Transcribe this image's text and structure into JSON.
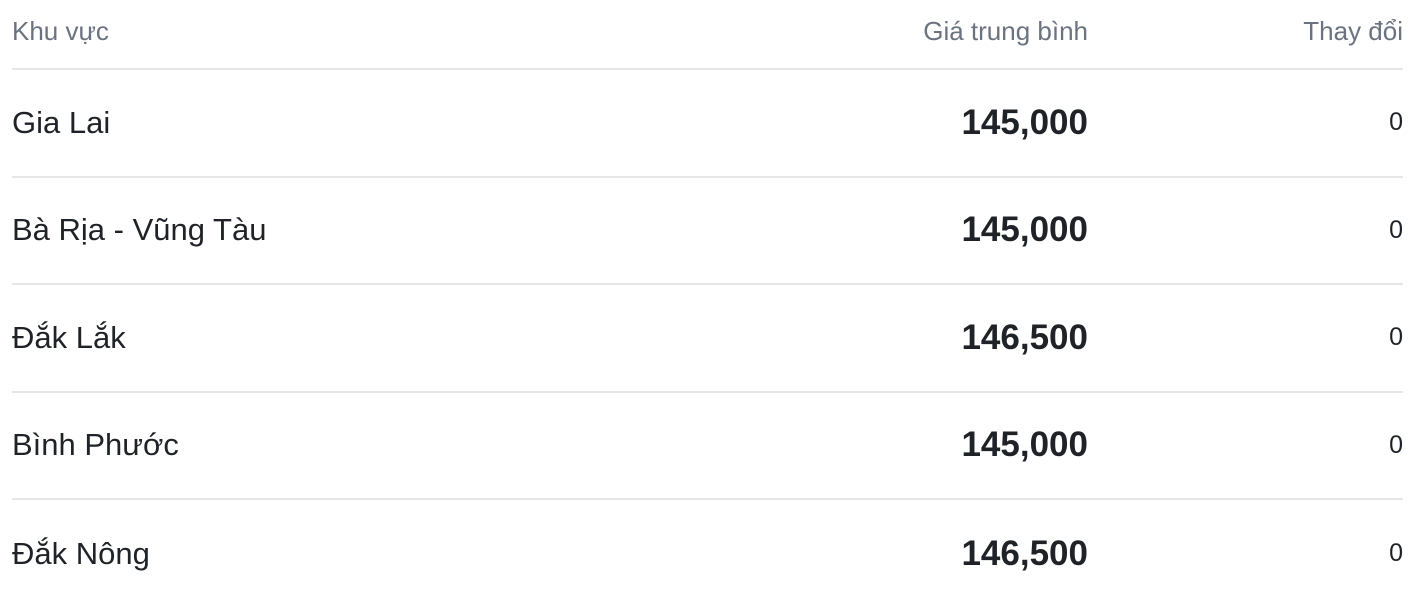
{
  "table": {
    "headers": [
      "Khu vực",
      "Giá trung bình",
      "Thay đổi"
    ],
    "rows": [
      {
        "region": "Gia Lai",
        "price": "145,000",
        "change": "0"
      },
      {
        "region": "Bà Rịa - Vũng Tàu",
        "price": "145,000",
        "change": "0"
      },
      {
        "region": "Đắk Lắk",
        "price": "146,500",
        "change": "0"
      },
      {
        "region": "Bình Phước",
        "price": "145,000",
        "change": "0"
      },
      {
        "region": "Đắk Nông",
        "price": "146,500",
        "change": "0"
      }
    ]
  },
  "colors": {
    "header_text": "#6b7280",
    "text": "#1f2328",
    "divider": "#e6e6e6"
  }
}
